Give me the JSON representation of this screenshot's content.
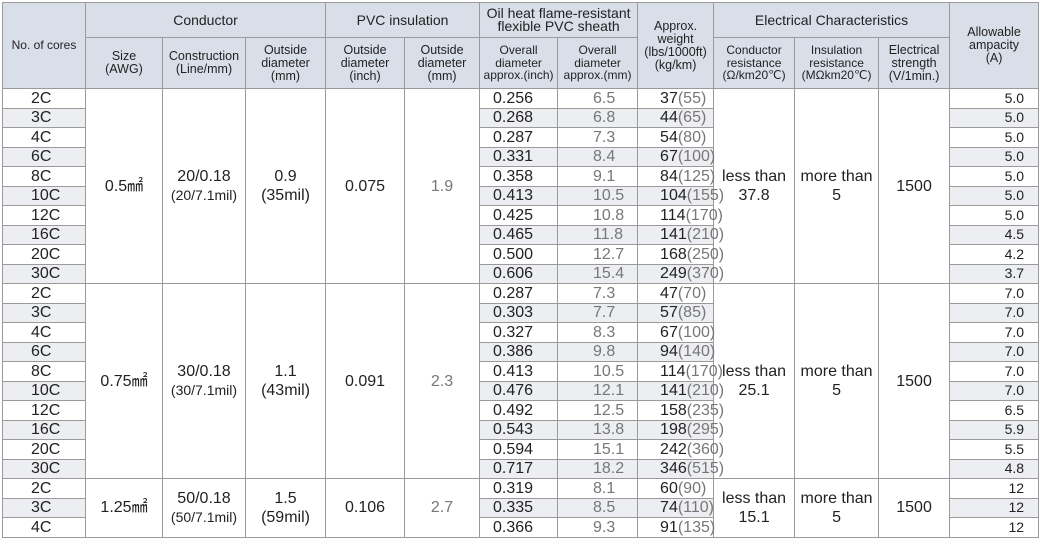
{
  "headers": {
    "cores": "No. of cores",
    "conductor": "Conductor",
    "size": "Size",
    "size_unit": "(AWG)",
    "construction": "Construction",
    "construction_unit": "(Line/mm)",
    "conductor_od": "Outside diameter",
    "conductor_od_unit": "(mm)",
    "pvc": "PVC insulation",
    "pvc_od_inch": "Outside diameter",
    "pvc_od_inch_unit": "(inch)",
    "pvc_od_mm": "Outside diameter",
    "pvc_od_mm_unit": "(mm)",
    "sheath": "Oil heat flame-resistant flexible PVC sheath",
    "sheath_od_inch": "Overall diameter",
    "sheath_od_inch_unit": "approx.(inch)",
    "sheath_od_mm": "Overall diameter",
    "sheath_od_mm_unit": "approx.(mm)",
    "weight": "Approx. weight",
    "weight_unit1": "(lbs/1000ft)",
    "weight_unit2": "(kg/km)",
    "electrical": "Electrical Characteristics",
    "resistance": "Conductor resistance",
    "resistance_unit": "(Ω/km20℃)",
    "insulation": "Insulation resistance",
    "insulation_unit": "(MΩkm20℃)",
    "strength": "Electrical strength",
    "strength_unit": "(V/1min.)",
    "ampacity": "Allowable ampacity",
    "ampacity_unit": "(A)"
  },
  "groups": [
    {
      "size": "0.5㎟",
      "construction": "20/0.18",
      "construction_sub": "(20/7.1mil)",
      "conductor_od": "0.9",
      "conductor_od_sub": "(35mil)",
      "pvc_od_inch": "0.075",
      "pvc_od_mm": "1.9",
      "resistance": "less than 37.8",
      "insulation": "more than 5",
      "strength": "1500",
      "rows": [
        {
          "cores": "2C",
          "od_inch": "0.256",
          "od_mm": "6.5",
          "wt_lbs": "37",
          "wt_kg": "(55)",
          "amp": "5.0"
        },
        {
          "cores": "3C",
          "od_inch": "0.268",
          "od_mm": "6.8",
          "wt_lbs": "44",
          "wt_kg": "(65)",
          "amp": "5.0"
        },
        {
          "cores": "4C",
          "od_inch": "0.287",
          "od_mm": "7.3",
          "wt_lbs": "54",
          "wt_kg": "(80)",
          "amp": "5.0"
        },
        {
          "cores": "6C",
          "od_inch": "0.331",
          "od_mm": "8.4",
          "wt_lbs": "67",
          "wt_kg": "(100)",
          "amp": "5.0"
        },
        {
          "cores": "8C",
          "od_inch": "0.358",
          "od_mm": "9.1",
          "wt_lbs": "84",
          "wt_kg": "(125)",
          "amp": "5.0"
        },
        {
          "cores": "10C",
          "od_inch": "0.413",
          "od_mm": "10.5",
          "wt_lbs": "104",
          "wt_kg": "(155)",
          "amp": "5.0"
        },
        {
          "cores": "12C",
          "od_inch": "0.425",
          "od_mm": "10.8",
          "wt_lbs": "114",
          "wt_kg": "(170)",
          "amp": "5.0"
        },
        {
          "cores": "16C",
          "od_inch": "0.465",
          "od_mm": "11.8",
          "wt_lbs": "141",
          "wt_kg": "(210)",
          "amp": "4.5"
        },
        {
          "cores": "20C",
          "od_inch": "0.500",
          "od_mm": "12.7",
          "wt_lbs": "168",
          "wt_kg": "(250)",
          "amp": "4.2"
        },
        {
          "cores": "30C",
          "od_inch": "0.606",
          "od_mm": "15.4",
          "wt_lbs": "249",
          "wt_kg": "(370)",
          "amp": "3.7"
        }
      ]
    },
    {
      "size": "0.75㎟",
      "construction": "30/0.18",
      "construction_sub": "(30/7.1mil)",
      "conductor_od": "1.1",
      "conductor_od_sub": "(43mil)",
      "pvc_od_inch": "0.091",
      "pvc_od_mm": "2.3",
      "resistance": "less than 25.1",
      "insulation": "more than 5",
      "strength": "1500",
      "rows": [
        {
          "cores": "2C",
          "od_inch": "0.287",
          "od_mm": "7.3",
          "wt_lbs": "47",
          "wt_kg": "(70)",
          "amp": "7.0"
        },
        {
          "cores": "3C",
          "od_inch": "0.303",
          "od_mm": "7.7",
          "wt_lbs": "57",
          "wt_kg": "(85)",
          "amp": "7.0"
        },
        {
          "cores": "4C",
          "od_inch": "0.327",
          "od_mm": "8.3",
          "wt_lbs": "67",
          "wt_kg": "(100)",
          "amp": "7.0"
        },
        {
          "cores": "6C",
          "od_inch": "0.386",
          "od_mm": "9.8",
          "wt_lbs": "94",
          "wt_kg": "(140)",
          "amp": "7.0"
        },
        {
          "cores": "8C",
          "od_inch": "0.413",
          "od_mm": "10.5",
          "wt_lbs": "114",
          "wt_kg": "(170)",
          "amp": "7.0"
        },
        {
          "cores": "10C",
          "od_inch": "0.476",
          "od_mm": "12.1",
          "wt_lbs": "141",
          "wt_kg": "(210)",
          "amp": "7.0"
        },
        {
          "cores": "12C",
          "od_inch": "0.492",
          "od_mm": "12.5",
          "wt_lbs": "158",
          "wt_kg": "(235)",
          "amp": "6.5"
        },
        {
          "cores": "16C",
          "od_inch": "0.543",
          "od_mm": "13.8",
          "wt_lbs": "198",
          "wt_kg": "(295)",
          "amp": "5.9"
        },
        {
          "cores": "20C",
          "od_inch": "0.594",
          "od_mm": "15.1",
          "wt_lbs": "242",
          "wt_kg": "(360)",
          "amp": "5.5"
        },
        {
          "cores": "30C",
          "od_inch": "0.717",
          "od_mm": "18.2",
          "wt_lbs": "346",
          "wt_kg": "(515)",
          "amp": "4.8"
        }
      ]
    },
    {
      "size": "1.25㎟",
      "construction": "50/0.18",
      "construction_sub": "(50/7.1mil)",
      "conductor_od": "1.5",
      "conductor_od_sub": "(59mil)",
      "pvc_od_inch": "0.106",
      "pvc_od_mm": "2.7",
      "resistance": "less than 15.1",
      "insulation": "more than 5",
      "strength": "1500",
      "rows": [
        {
          "cores": "2C",
          "od_inch": "0.319",
          "od_mm": "8.1",
          "wt_lbs": "60",
          "wt_kg": "(90)",
          "amp": "12"
        },
        {
          "cores": "3C",
          "od_inch": "0.335",
          "od_mm": "8.5",
          "wt_lbs": "74",
          "wt_kg": "(110)",
          "amp": "12"
        },
        {
          "cores": "4C",
          "od_inch": "0.366",
          "od_mm": "9.3",
          "wt_lbs": "91",
          "wt_kg": "(135)",
          "amp": "12"
        }
      ]
    }
  ]
}
